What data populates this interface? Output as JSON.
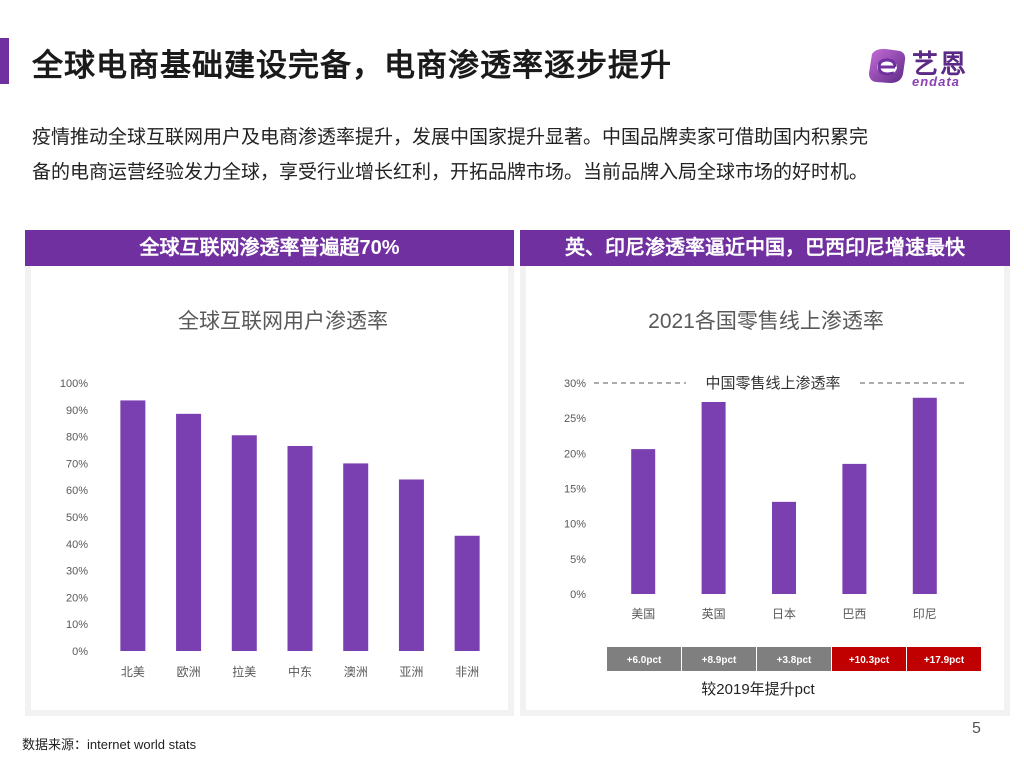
{
  "header": {
    "title": "全球电商基础建设完备，电商渗透率逐步提升",
    "logo_cn": "艺恩",
    "logo_en": "endata"
  },
  "intro": {
    "line1": "疫情推动全球互联网用户及电商渗透率提升，发展中国家提升显著。中国品牌卖家可借助国内积累完",
    "line2": "备的电商运营经验发力全球，享受行业增长红利，开拓品牌市场。当前品牌入局全球市场的好时机。"
  },
  "panels": {
    "left_header": "全球互联网渗透率普遍超70%",
    "right_header": "英、印尼渗透率逼近中国，巴西印尼增速最快"
  },
  "chart_data": [
    {
      "type": "bar",
      "title": "全球互联网用户渗透率",
      "categories": [
        "北美",
        "欧洲",
        "拉美",
        "中东",
        "澳洲",
        "亚洲",
        "非洲"
      ],
      "values": [
        93.5,
        88.5,
        80.5,
        76.5,
        70,
        64,
        43
      ],
      "ylim": [
        0,
        100
      ],
      "yticks": [
        "0%",
        "10%",
        "20%",
        "30%",
        "40%",
        "50%",
        "60%",
        "70%",
        "80%",
        "90%",
        "100%"
      ],
      "bar_color": "#7a3fb0",
      "grid": false
    },
    {
      "type": "bar",
      "title": "2021各国零售线上渗透率",
      "categories": [
        "美国",
        "英国",
        "日本",
        "巴西",
        "印尼"
      ],
      "values": [
        20.6,
        27.3,
        13.1,
        18.5,
        27.9
      ],
      "ylim": [
        0,
        30
      ],
      "yticks": [
        "0%",
        "5%",
        "10%",
        "15%",
        "20%",
        "25%",
        "30%"
      ],
      "bar_color": "#7a3fb0",
      "reference_line": {
        "value": 30,
        "label": "中国零售线上渗透率"
      },
      "change_labels": [
        "+6.0pct",
        "+8.9pct",
        "+3.8pct",
        "+10.3pct",
        "+17.9pct"
      ],
      "change_colors": [
        "#7f7f7f",
        "#7f7f7f",
        "#7f7f7f",
        "#c00000",
        "#c00000"
      ],
      "change_caption": "较2019年提升pct",
      "grid": false
    }
  ],
  "footer": {
    "source": "数据来源：internet world stats",
    "page_number": "5"
  }
}
